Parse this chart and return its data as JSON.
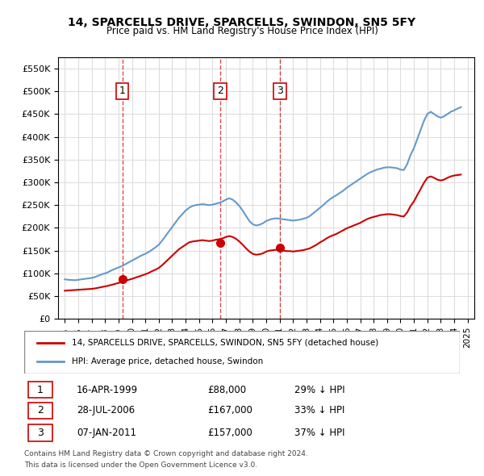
{
  "title": "14, SPARCELLS DRIVE, SPARCELLS, SWINDON, SN5 5FY",
  "subtitle": "Price paid vs. HM Land Registry's House Price Index (HPI)",
  "legend_house": "14, SPARCELLS DRIVE, SPARCELLS, SWINDON, SN5 5FY (detached house)",
  "legend_hpi": "HPI: Average price, detached house, Swindon",
  "house_color": "#cc0000",
  "hpi_color": "#6699cc",
  "background_color": "#ffffff",
  "grid_color": "#dddddd",
  "sale_points": [
    {
      "date_num": 1999.29,
      "price": 88000,
      "label": "1"
    },
    {
      "date_num": 2006.57,
      "price": 167000,
      "label": "2"
    },
    {
      "date_num": 2011.02,
      "price": 157000,
      "label": "3"
    }
  ],
  "sale_dates": [
    "16-APR-1999",
    "28-JUL-2006",
    "07-JAN-2011"
  ],
  "sale_prices": [
    "£88,000",
    "£167,000",
    "£157,000"
  ],
  "sale_hpi_pct": [
    "29% ↓ HPI",
    "33% ↓ HPI",
    "37% ↓ HPI"
  ],
  "vline_dates": [
    1999.29,
    2006.57,
    2011.02
  ],
  "ylim": [
    0,
    575000
  ],
  "xlim": [
    1994.5,
    2025.5
  ],
  "yticks": [
    0,
    50000,
    100000,
    150000,
    200000,
    250000,
    300000,
    350000,
    400000,
    450000,
    500000,
    550000
  ],
  "xticks": [
    1995,
    1996,
    1997,
    1998,
    1999,
    2000,
    2001,
    2002,
    2003,
    2004,
    2005,
    2006,
    2007,
    2008,
    2009,
    2010,
    2011,
    2012,
    2013,
    2014,
    2015,
    2016,
    2017,
    2018,
    2019,
    2020,
    2021,
    2022,
    2023,
    2024,
    2025
  ],
  "footer1": "Contains HM Land Registry data © Crown copyright and database right 2024.",
  "footer2": "This data is licensed under the Open Government Licence v3.0.",
  "hpi_data": {
    "x": [
      1995.0,
      1995.25,
      1995.5,
      1995.75,
      1996.0,
      1996.25,
      1996.5,
      1996.75,
      1997.0,
      1997.25,
      1997.5,
      1997.75,
      1998.0,
      1998.25,
      1998.5,
      1998.75,
      1999.0,
      1999.25,
      1999.5,
      1999.75,
      2000.0,
      2000.25,
      2000.5,
      2000.75,
      2001.0,
      2001.25,
      2001.5,
      2001.75,
      2002.0,
      2002.25,
      2002.5,
      2002.75,
      2003.0,
      2003.25,
      2003.5,
      2003.75,
      2004.0,
      2004.25,
      2004.5,
      2004.75,
      2005.0,
      2005.25,
      2005.5,
      2005.75,
      2006.0,
      2006.25,
      2006.5,
      2006.75,
      2007.0,
      2007.25,
      2007.5,
      2007.75,
      2008.0,
      2008.25,
      2008.5,
      2008.75,
      2009.0,
      2009.25,
      2009.5,
      2009.75,
      2010.0,
      2010.25,
      2010.5,
      2010.75,
      2011.0,
      2011.25,
      2011.5,
      2011.75,
      2012.0,
      2012.25,
      2012.5,
      2012.75,
      2013.0,
      2013.25,
      2013.5,
      2013.75,
      2014.0,
      2014.25,
      2014.5,
      2014.75,
      2015.0,
      2015.25,
      2015.5,
      2015.75,
      2016.0,
      2016.25,
      2016.5,
      2016.75,
      2017.0,
      2017.25,
      2017.5,
      2017.75,
      2018.0,
      2018.25,
      2018.5,
      2018.75,
      2019.0,
      2019.25,
      2019.5,
      2019.75,
      2020.0,
      2020.25,
      2020.5,
      2020.75,
      2021.0,
      2021.25,
      2021.5,
      2021.75,
      2022.0,
      2022.25,
      2022.5,
      2022.75,
      2023.0,
      2023.25,
      2023.5,
      2023.75,
      2024.0,
      2024.25,
      2024.5
    ],
    "y": [
      87000,
      86000,
      85500,
      85000,
      86000,
      87000,
      88000,
      89000,
      90000,
      92000,
      95000,
      98000,
      100000,
      103000,
      107000,
      110000,
      113000,
      116000,
      120000,
      124000,
      128000,
      132000,
      136000,
      140000,
      143000,
      147000,
      152000,
      157000,
      163000,
      172000,
      182000,
      192000,
      202000,
      212000,
      222000,
      230000,
      238000,
      244000,
      248000,
      250000,
      251000,
      252000,
      251000,
      250000,
      251000,
      253000,
      255000,
      258000,
      262000,
      265000,
      262000,
      256000,
      248000,
      238000,
      226000,
      215000,
      208000,
      205000,
      207000,
      210000,
      215000,
      218000,
      220000,
      221000,
      220000,
      219000,
      218000,
      217000,
      216000,
      217000,
      218000,
      220000,
      222000,
      226000,
      232000,
      238000,
      244000,
      250000,
      257000,
      263000,
      268000,
      272000,
      277000,
      282000,
      288000,
      293000,
      298000,
      303000,
      308000,
      313000,
      318000,
      322000,
      325000,
      328000,
      330000,
      332000,
      333000,
      333000,
      332000,
      331000,
      328000,
      327000,
      340000,
      360000,
      375000,
      395000,
      415000,
      435000,
      450000,
      455000,
      450000,
      445000,
      442000,
      445000,
      450000,
      455000,
      458000,
      462000,
      465000
    ]
  },
  "house_data": {
    "x": [
      1995.0,
      1995.25,
      1995.5,
      1995.75,
      1996.0,
      1996.25,
      1996.5,
      1996.75,
      1997.0,
      1997.25,
      1997.5,
      1997.75,
      1998.0,
      1998.25,
      1998.5,
      1998.75,
      1999.0,
      1999.25,
      1999.5,
      1999.75,
      2000.0,
      2000.25,
      2000.5,
      2000.75,
      2001.0,
      2001.25,
      2001.5,
      2001.75,
      2002.0,
      2002.25,
      2002.5,
      2002.75,
      2003.0,
      2003.25,
      2003.5,
      2003.75,
      2004.0,
      2004.25,
      2004.5,
      2004.75,
      2005.0,
      2005.25,
      2005.5,
      2005.75,
      2006.0,
      2006.25,
      2006.5,
      2006.75,
      2007.0,
      2007.25,
      2007.5,
      2007.75,
      2008.0,
      2008.25,
      2008.5,
      2008.75,
      2009.0,
      2009.25,
      2009.5,
      2009.75,
      2010.0,
      2010.25,
      2010.5,
      2010.75,
      2011.0,
      2011.25,
      2011.5,
      2011.75,
      2012.0,
      2012.25,
      2012.5,
      2012.75,
      2013.0,
      2013.25,
      2013.5,
      2013.75,
      2014.0,
      2014.25,
      2014.5,
      2014.75,
      2015.0,
      2015.25,
      2015.5,
      2015.75,
      2016.0,
      2016.25,
      2016.5,
      2016.75,
      2017.0,
      2017.25,
      2017.5,
      2017.75,
      2018.0,
      2018.25,
      2018.5,
      2018.75,
      2019.0,
      2019.25,
      2019.5,
      2019.75,
      2020.0,
      2020.25,
      2020.5,
      2020.75,
      2021.0,
      2021.25,
      2021.5,
      2021.75,
      2022.0,
      2022.25,
      2022.5,
      2022.75,
      2023.0,
      2023.25,
      2023.5,
      2023.75,
      2024.0,
      2024.25,
      2024.5
    ],
    "y": [
      62000,
      62500,
      63000,
      63500,
      64000,
      64500,
      65000,
      65500,
      66000,
      67000,
      68500,
      70000,
      71500,
      73000,
      75000,
      77000,
      79000,
      81000,
      83500,
      86000,
      88000,
      90500,
      93000,
      95500,
      98000,
      101000,
      105000,
      108000,
      112000,
      118000,
      125000,
      132000,
      139000,
      146000,
      153000,
      158000,
      163000,
      168000,
      170000,
      171000,
      172000,
      173000,
      172000,
      171000,
      172000,
      174000,
      175000,
      177000,
      180000,
      182000,
      180000,
      176000,
      170000,
      163000,
      155000,
      148000,
      143000,
      141000,
      142000,
      144000,
      148000,
      150000,
      151000,
      152000,
      151000,
      150000,
      149000,
      149000,
      148000,
      149000,
      150000,
      151000,
      153000,
      155000,
      159000,
      163000,
      168000,
      172000,
      177000,
      181000,
      184000,
      187000,
      191000,
      195000,
      199000,
      202000,
      205000,
      208000,
      211000,
      215000,
      219000,
      222000,
      224000,
      226000,
      228000,
      229000,
      230000,
      230000,
      229000,
      228000,
      226000,
      225000,
      234000,
      248000,
      258000,
      272000,
      285000,
      299000,
      310000,
      313000,
      310000,
      306000,
      304000,
      306000,
      310000,
      313000,
      315000,
      316000,
      317000
    ]
  }
}
